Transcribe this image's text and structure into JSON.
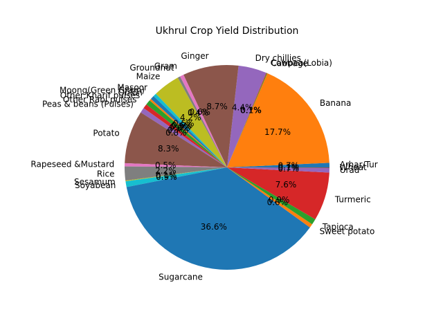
{
  "chart_data": {
    "type": "pie",
    "title": "Ukhrul Crop Yield Distribution",
    "start_angle_deg": 0,
    "direction": "counterclockwise",
    "slices": [
      {
        "label": "Arhar/Tur",
        "pct": 0.7,
        "pct_label": "0.7%",
        "color": "#1f77b4"
      },
      {
        "label": "Banana",
        "pct": 17.7,
        "pct_label": "17.7%",
        "color": "#ff7f0e"
      },
      {
        "label": "Cabbage",
        "pct": 0.1,
        "pct_label": "0.1%",
        "color": "#2ca02c"
      },
      {
        "label": "Cowpea(Lobia)",
        "pct": 0.1,
        "pct_label": "0.1%",
        "color": "#d62728"
      },
      {
        "label": "Dry chillies",
        "pct": 4.4,
        "pct_label": "4.4%",
        "color": "#9467bd"
      },
      {
        "label": "Ginger",
        "pct": 8.7,
        "pct_label": "8.7%",
        "color": "#8c564b"
      },
      {
        "label": "Gram",
        "pct": 0.6,
        "pct_label": "0.6%",
        "color": "#e377c2"
      },
      {
        "label": "Groundnut",
        "pct": 0.4,
        "pct_label": "0.4%",
        "color": "#7f7f7f"
      },
      {
        "label": "Maize",
        "pct": 4.2,
        "pct_label": "4.2%",
        "color": "#bcbd22"
      },
      {
        "label": "Masoor",
        "pct": 0.5,
        "pct_label": "0.5%",
        "color": "#17becf"
      },
      {
        "label": "Moong(Green Gram)",
        "pct": 0.6,
        "pct_label": "0.6%",
        "color": "#1f77b4"
      },
      {
        "label": "Onion",
        "pct": 0.3,
        "pct_label": "0.3%",
        "color": "#ff7f0e"
      },
      {
        "label": "Other Kharif pulses",
        "pct": 0.8,
        "pct_label": "0.8%",
        "color": "#2ca02c"
      },
      {
        "label": "Other Rabi pulses",
        "pct": 0.7,
        "pct_label": "0.7%",
        "color": "#d62728"
      },
      {
        "label": "Peas & beans (Pulses)",
        "pct": 0.8,
        "pct_label": "0.8%",
        "color": "#9467bd"
      },
      {
        "label": "Potato",
        "pct": 8.3,
        "pct_label": "8.3%",
        "color": "#8c564b"
      },
      {
        "label": "Rapeseed &Mustard",
        "pct": 0.5,
        "pct_label": "0.5%",
        "color": "#e377c2"
      },
      {
        "label": "Rice",
        "pct": 2.2,
        "pct_label": "2.2%",
        "color": "#7f7f7f"
      },
      {
        "label": "Sesamum",
        "pct": 0.1,
        "pct_label": "0.1%",
        "color": "#bcbd22"
      },
      {
        "label": "Soyabean",
        "pct": 0.9,
        "pct_label": "0.9%",
        "color": "#17becf"
      },
      {
        "label": "Sugarcane",
        "pct": 36.6,
        "pct_label": "36.6%",
        "color": "#1f77b4"
      },
      {
        "label": "Sweet potato",
        "pct": 0.6,
        "pct_label": "0.6%",
        "color": "#ff7f0e"
      },
      {
        "label": "Tapioca",
        "pct": 0.9,
        "pct_label": "0.9%",
        "color": "#2ca02c"
      },
      {
        "label": "Turmeric",
        "pct": 7.6,
        "pct_label": "7.6%",
        "color": "#d62728"
      },
      {
        "label": "Urad",
        "pct": 0.7,
        "pct_label": "0.7%",
        "color": "#9467bd"
      },
      {
        "label": "Wheat",
        "pct": 0.1,
        "pct_label": "0.1%",
        "color": "#8c564b"
      }
    ]
  }
}
